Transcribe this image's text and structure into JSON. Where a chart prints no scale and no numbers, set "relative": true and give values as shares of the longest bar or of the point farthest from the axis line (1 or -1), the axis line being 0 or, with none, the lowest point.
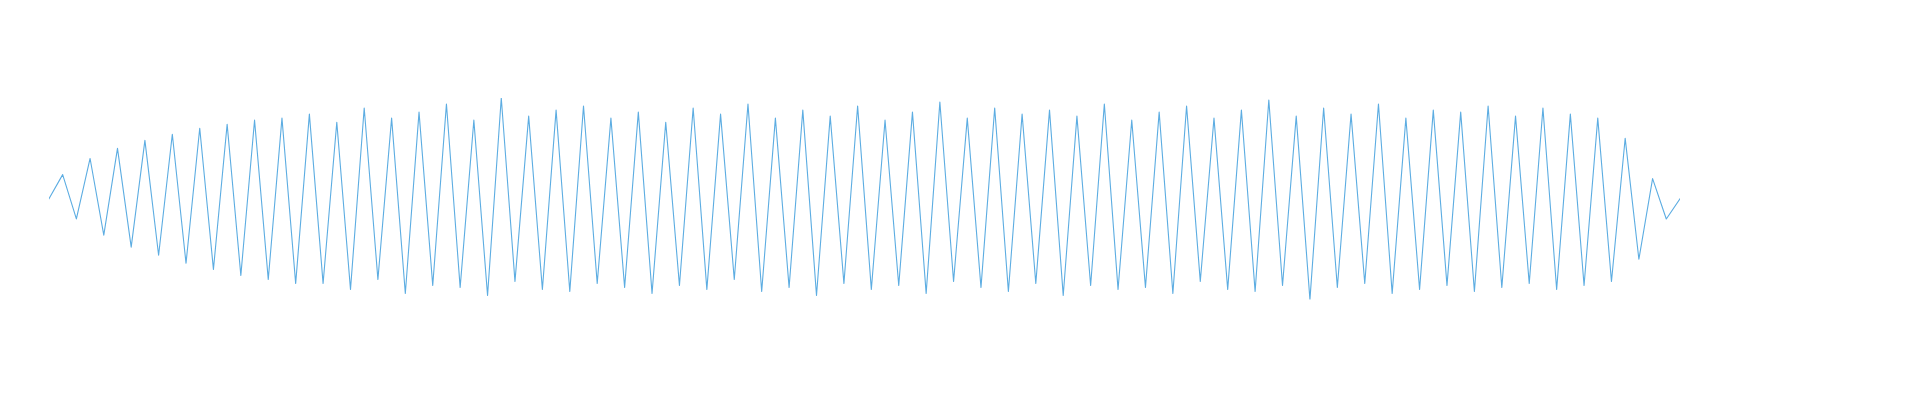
{
  "chart_data": {
    "type": "line",
    "relative": true,
    "tick_labels": false,
    "categories": [
      null,
      null,
      null,
      null,
      null,
      null,
      null,
      null,
      null,
      null,
      null,
      null,
      null,
      null,
      null,
      null,
      null,
      null,
      null,
      null,
      null,
      null,
      null,
      null,
      null,
      null,
      null,
      null,
      null,
      null,
      null,
      null,
      null,
      null,
      null,
      null,
      null,
      null,
      null,
      null,
      null,
      null,
      null,
      null,
      null,
      null,
      null,
      null,
      null,
      null,
      null,
      null,
      null,
      null,
      null,
      null,
      null,
      null,
      null,
      null,
      null,
      null,
      null,
      null,
      null,
      null,
      null,
      null,
      null,
      null,
      null,
      null,
      null,
      null,
      null,
      null,
      null,
      null,
      null,
      null,
      null,
      null,
      null,
      null,
      null,
      null,
      null,
      null,
      null,
      null,
      null,
      null,
      null,
      null,
      null,
      null,
      null,
      null,
      null,
      null,
      null,
      null,
      null,
      null,
      null,
      null,
      null,
      null,
      null,
      null,
      null,
      null,
      null,
      null,
      null,
      null,
      null,
      null,
      null,
      null
    ],
    "series": [
      {
        "color": "#5dade2",
        "values": [
          0.5,
          0.62,
          0.4,
          0.7,
          0.32,
          0.75,
          0.26,
          0.79,
          0.22,
          0.82,
          0.18,
          0.85,
          0.15,
          0.87,
          0.12,
          0.89,
          0.1,
          0.9,
          0.08,
          0.92,
          0.08,
          0.88,
          0.05,
          0.95,
          0.1,
          0.9,
          0.03,
          0.93,
          0.07,
          0.97,
          0.06,
          0.89,
          0.02,
          1.0,
          0.09,
          0.91,
          0.05,
          0.94,
          0.04,
          0.96,
          0.08,
          0.9,
          0.06,
          0.93,
          0.03,
          0.88,
          0.07,
          0.95,
          0.05,
          0.92,
          0.1,
          0.97,
          0.04,
          0.9,
          0.06,
          0.94,
          0.02,
          0.91,
          0.08,
          0.96,
          0.05,
          0.89,
          0.07,
          0.93,
          0.03,
          0.98,
          0.09,
          0.9,
          0.06,
          0.95,
          0.04,
          0.92,
          0.08,
          0.94,
          0.02,
          0.91,
          0.07,
          0.97,
          0.05,
          0.89,
          0.06,
          0.93,
          0.03,
          0.96,
          0.09,
          0.9,
          0.05,
          0.94,
          0.04,
          0.99,
          0.07,
          0.91,
          0.0,
          0.95,
          0.06,
          0.92,
          0.08,
          0.97,
          0.03,
          0.9,
          0.05,
          0.94,
          0.07,
          0.93,
          0.04,
          0.96,
          0.06,
          0.91,
          0.08,
          0.95,
          0.05,
          0.92,
          0.07,
          0.9,
          0.09,
          0.8,
          0.2,
          0.6,
          0.4,
          0.5
        ]
      }
    ]
  }
}
